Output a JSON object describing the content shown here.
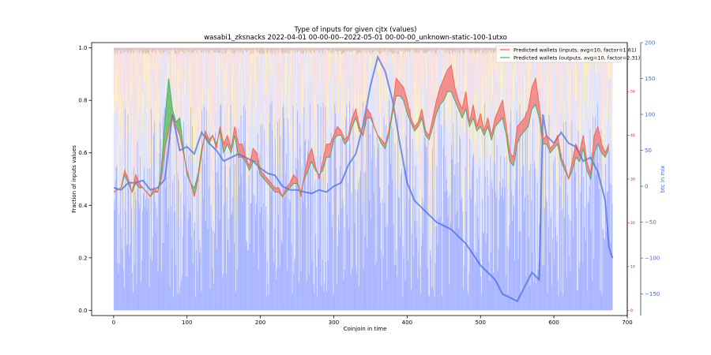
{
  "chart_data": {
    "type": "line",
    "title": "Type of inputs for given cjtx (values)",
    "subtitle": "wasabi1_zksnacks 2022-04-01 00-00-00--2022-05-01 00-00-00_unknown-static-100-1utxo",
    "xlabel": "Coinjoin in time",
    "ylabel": "Fraction of inputs values",
    "y2label": "btc in mix",
    "xlim": [
      -30,
      700
    ],
    "ylim": [
      -0.02,
      1.02
    ],
    "y2lim": [
      -180,
      200
    ],
    "y3lim": [
      0,
      60
    ],
    "grid": false,
    "legend_position": "top-right",
    "x_ticks": [
      "0",
      "100",
      "200",
      "300",
      "400",
      "500",
      "600",
      "700"
    ],
    "y_ticks": [
      "0.0",
      "0.2",
      "0.4",
      "0.6",
      "0.8",
      "1.0"
    ],
    "y2_ticks": [
      "−150",
      "−100",
      "−50",
      "0",
      "50",
      "100",
      "150",
      "200"
    ],
    "y3_ticks": [
      "0",
      "10",
      "20",
      "30",
      "40",
      "50"
    ],
    "colors": {
      "inputs_line": "#ff6347",
      "outputs_line": "#3cb371",
      "fill_red": "#f08080",
      "fill_green": "#66bb66",
      "btc_line": "#4169e1",
      "bar_blue": "#a8b4ff",
      "bar_light_blue": "#e0e4fa",
      "bar_yellow": "#fff2c0",
      "bar_pink": "#fbe0e0",
      "bar_tan": "#dcc4b4",
      "left_axis_text": "#000000",
      "right_axis_text": "#4169e1",
      "red_axis_text": "#ff0000"
    },
    "series": [
      {
        "name": "Predicted wallets (inputs, avg=10, factor=1.61)",
        "axis": "y3",
        "x": [
          0,
          10,
          15,
          20,
          25,
          30,
          35,
          40,
          45,
          50,
          55,
          60,
          65,
          70,
          75,
          80,
          85,
          90,
          95,
          100,
          105,
          110,
          115,
          120,
          125,
          130,
          135,
          140,
          145,
          150,
          155,
          160,
          165,
          170,
          175,
          180,
          185,
          190,
          195,
          200,
          210,
          220,
          225,
          230,
          235,
          240,
          245,
          250,
          255,
          260,
          265,
          270,
          275,
          280,
          285,
          290,
          295,
          300,
          305,
          310,
          315,
          320,
          325,
          330,
          335,
          340,
          345,
          350,
          355,
          360,
          365,
          370,
          375,
          380,
          385,
          390,
          395,
          400,
          405,
          410,
          415,
          420,
          425,
          430,
          435,
          440,
          445,
          450,
          455,
          460,
          465,
          470,
          475,
          480,
          485,
          490,
          495,
          500,
          505,
          510,
          515,
          520,
          525,
          530,
          535,
          540,
          545,
          550,
          555,
          560,
          565,
          570,
          575,
          580,
          585,
          590,
          595,
          600,
          605,
          610,
          615,
          620,
          625,
          630,
          635,
          640,
          645,
          650,
          655,
          660,
          665,
          670,
          675
        ],
        "y": [
          27,
          28,
          32,
          30,
          27,
          31,
          29,
          28,
          27,
          26,
          28,
          27,
          30,
          37,
          41,
          44,
          42,
          40,
          36,
          32,
          29,
          26,
          30,
          36,
          41,
          39,
          40,
          37,
          42,
          38,
          40,
          37,
          42,
          38,
          38,
          35,
          33,
          37,
          36,
          32,
          30,
          28,
          28,
          26,
          28,
          29,
          31,
          30,
          26,
          31,
          35,
          37,
          33,
          30,
          34,
          38,
          38,
          40,
          42,
          41,
          39,
          40,
          44,
          46,
          42,
          40,
          46,
          45,
          42,
          40,
          39,
          38,
          41,
          46,
          53,
          52,
          51,
          48,
          44,
          42,
          43,
          46,
          41,
          40,
          44,
          48,
          51,
          53,
          55,
          56,
          51,
          48,
          46,
          50,
          43,
          47,
          42,
          45,
          41,
          44,
          40,
          44,
          46,
          48,
          42,
          36,
          35,
          42,
          43,
          44,
          46,
          51,
          53,
          47,
          39,
          40,
          37,
          38,
          40,
          35,
          33,
          30,
          34,
          38,
          36,
          40,
          34,
          31,
          40,
          42,
          38,
          36,
          38
        ]
      },
      {
        "name": "Predicted wallets (outputs, avg=10, factor=2.31)",
        "axis": "y3",
        "x": [
          0,
          10,
          15,
          20,
          25,
          30,
          35,
          40,
          45,
          50,
          55,
          60,
          65,
          70,
          75,
          80,
          85,
          90,
          95,
          100,
          105,
          110,
          115,
          120,
          125,
          130,
          135,
          140,
          145,
          150,
          155,
          160,
          165,
          170,
          175,
          180,
          185,
          190,
          195,
          200,
          210,
          220,
          225,
          230,
          235,
          240,
          245,
          250,
          255,
          260,
          265,
          270,
          275,
          280,
          285,
          290,
          295,
          300,
          305,
          310,
          315,
          320,
          325,
          330,
          335,
          340,
          345,
          350,
          355,
          360,
          365,
          370,
          375,
          380,
          385,
          390,
          395,
          400,
          405,
          410,
          415,
          420,
          425,
          430,
          435,
          440,
          445,
          450,
          455,
          460,
          465,
          470,
          475,
          480,
          485,
          490,
          495,
          500,
          505,
          510,
          515,
          520,
          525,
          530,
          535,
          540,
          545,
          550,
          555,
          560,
          565,
          570,
          575,
          580,
          585,
          590,
          595,
          600,
          605,
          610,
          615,
          620,
          625,
          630,
          635,
          640,
          645,
          650,
          655,
          660,
          665,
          670,
          675
        ],
        "y": [
          27,
          28,
          31,
          29,
          27,
          29,
          28,
          28,
          27,
          26,
          27,
          27,
          32,
          44,
          53,
          46,
          43,
          44,
          37,
          31,
          29,
          28,
          31,
          37,
          40,
          38,
          40,
          38,
          41,
          36,
          38,
          36,
          40,
          35,
          35,
          34,
          32,
          34,
          34,
          31,
          29,
          27,
          27,
          26,
          27,
          28,
          29,
          29,
          27,
          30,
          32,
          34,
          32,
          31,
          32,
          35,
          35,
          39,
          40,
          40,
          38,
          39,
          42,
          44,
          41,
          40,
          44,
          44,
          42,
          40,
          38,
          37,
          40,
          45,
          49,
          49,
          48,
          45,
          43,
          41,
          42,
          44,
          40,
          39,
          42,
          45,
          47,
          48,
          50,
          50,
          48,
          46,
          44,
          46,
          42,
          44,
          41,
          42,
          40,
          42,
          39,
          42,
          43,
          44,
          40,
          34,
          33,
          38,
          40,
          41,
          42,
          46,
          47,
          44,
          38,
          38,
          36,
          37,
          38,
          34,
          32,
          30,
          32,
          35,
          34,
          37,
          32,
          30,
          36,
          38,
          36,
          35,
          37
        ]
      },
      {
        "name": "btc in mix",
        "axis": "y2",
        "x": [
          0,
          10,
          20,
          30,
          40,
          50,
          60,
          70,
          75,
          80,
          90,
          100,
          110,
          120,
          130,
          140,
          150,
          160,
          170,
          180,
          190,
          200,
          210,
          220,
          230,
          240,
          250,
          260,
          270,
          280,
          290,
          300,
          310,
          320,
          330,
          340,
          350,
          360,
          370,
          380,
          390,
          400,
          410,
          420,
          430,
          440,
          450,
          460,
          470,
          480,
          490,
          500,
          510,
          520,
          530,
          540,
          550,
          560,
          570,
          580,
          585,
          590,
          600,
          610,
          620,
          630,
          640,
          650,
          660,
          670,
          675,
          680
        ],
        "y": [
          -2,
          -5,
          5,
          5,
          8,
          -5,
          -2,
          10,
          55,
          100,
          50,
          55,
          45,
          75,
          60,
          50,
          35,
          40,
          45,
          40,
          35,
          25,
          18,
          15,
          0,
          -5,
          -5,
          -8,
          -10,
          -5,
          -8,
          0,
          5,
          30,
          45,
          85,
          140,
          180,
          160,
          120,
          60,
          5,
          -20,
          -30,
          -40,
          -50,
          -55,
          -60,
          -70,
          -80,
          -95,
          -110,
          -120,
          -130,
          -150,
          -155,
          -160,
          -140,
          -120,
          -130,
          100,
          70,
          60,
          75,
          60,
          55,
          35,
          40,
          20,
          -20,
          -85,
          -100
        ]
      }
    ]
  }
}
